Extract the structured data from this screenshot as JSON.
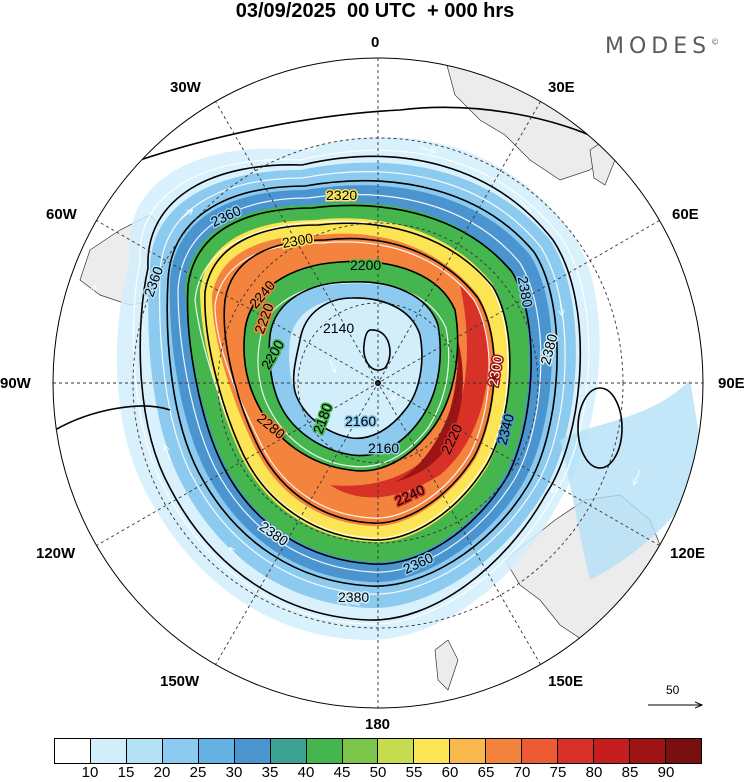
{
  "header": {
    "title": "03/09/2025  00 UTC  + 000 hrs",
    "brand": "MODES",
    "brand_mark": "©"
  },
  "map": {
    "projection": "south-polar-stereographic",
    "longitude_labels": [
      "0",
      "30E",
      "60E",
      "90E",
      "120E",
      "150E",
      "180",
      "150W",
      "120W",
      "90W",
      "60W",
      "30W"
    ],
    "contour_labels": [
      "2140",
      "2160",
      "2160",
      "2180",
      "2200",
      "2200",
      "2220",
      "2220",
      "2240",
      "2240",
      "2280",
      "2300",
      "2300",
      "2320",
      "2340",
      "2360",
      "2360",
      "2360",
      "2380",
      "2380",
      "2380",
      "2380"
    ]
  },
  "wind_scale": {
    "label": "50"
  },
  "colorbar": {
    "levels": [
      "10",
      "15",
      "20",
      "25",
      "30",
      "35",
      "40",
      "45",
      "50",
      "55",
      "60",
      "65",
      "70",
      "75",
      "80",
      "85",
      "90"
    ],
    "colors": [
      "#ffffff",
      "#d2eefb",
      "#b4e1f6",
      "#8ccbef",
      "#64b2e3",
      "#4a94cf",
      "#3aa193",
      "#45b54e",
      "#7bc64a",
      "#c6dc4e",
      "#fce554",
      "#f9b84c",
      "#f4833e",
      "#ee5a34",
      "#d73128",
      "#c41e1e",
      "#9e1414",
      "#7a0f0f"
    ]
  }
}
